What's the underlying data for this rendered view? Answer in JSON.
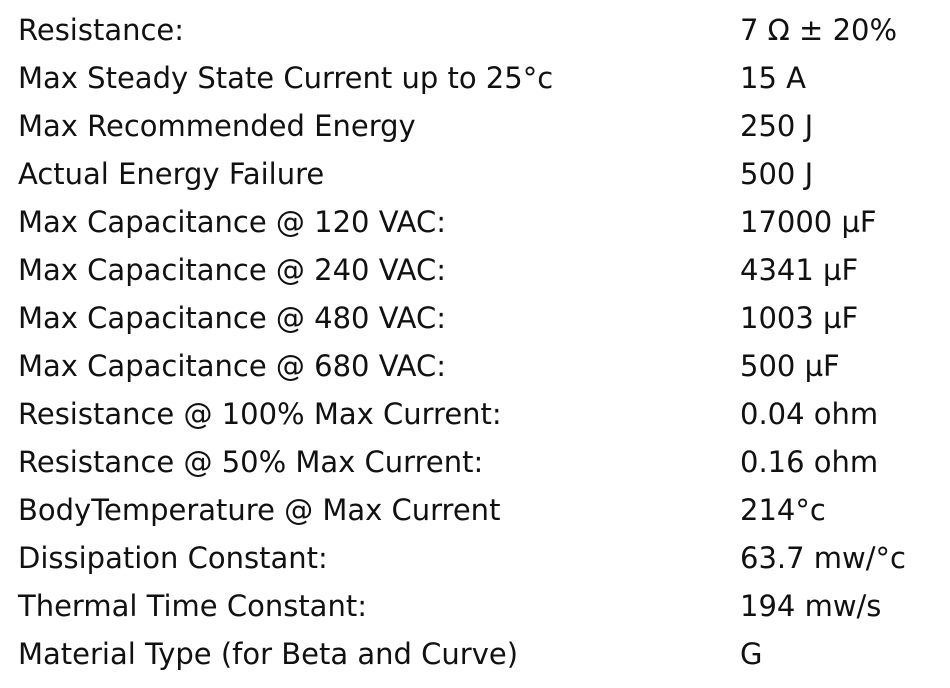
{
  "table": {
    "rows": [
      [
        "Resistance:",
        "7 Ω ± 20%"
      ],
      [
        "Max Steady State Current up to 25°c",
        "15 A"
      ],
      [
        "Max Recommended Energy",
        "250 J"
      ],
      [
        "Actual Energy Failure",
        "500 J"
      ],
      [
        "Max Capacitance @ 120 VAC:",
        "17000 µF"
      ],
      [
        "Max Capacitance @ 240 VAC:",
        "4341 µF"
      ],
      [
        "Max Capacitance @ 480 VAC:",
        "1003 µF"
      ],
      [
        "Max Capacitance @ 680 VAC:",
        "500 µF"
      ],
      [
        "Resistance @ 100% Max Current:",
        "0.04 ohm"
      ],
      [
        "Resistance @ 50% Max Current:",
        "0.16 ohm"
      ],
      [
        "BodyTemperature @ Max Current",
        "214°c"
      ],
      [
        "Dissipation Constant:",
        "63.7 mw/°c"
      ],
      [
        "Thermal Time Constant:",
        "194 mw/s"
      ],
      [
        "Material Type (for Beta and Curve)",
        "G"
      ]
    ]
  }
}
